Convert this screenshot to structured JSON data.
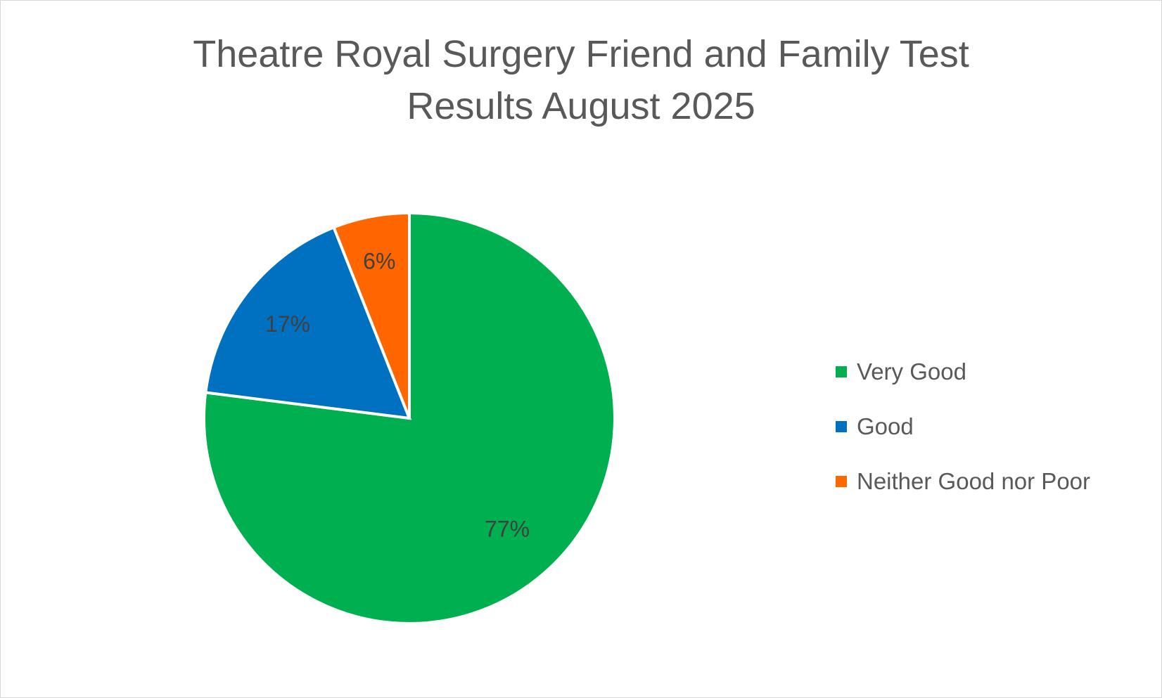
{
  "chart_data": {
    "type": "pie",
    "title_lines": [
      "Theatre Royal Surgery Friend and Family Test",
      "Results August 2025"
    ],
    "categories": [
      "Very Good",
      "Good",
      "Neither Good nor Poor"
    ],
    "values": [
      77,
      17,
      6
    ],
    "data_labels": [
      "77%",
      "17%",
      "6%"
    ],
    "colors": [
      "#00B050",
      "#0070C0",
      "#FF6600"
    ],
    "legend_position": "right",
    "start_angle_deg": 0,
    "direction": "clockwise"
  }
}
